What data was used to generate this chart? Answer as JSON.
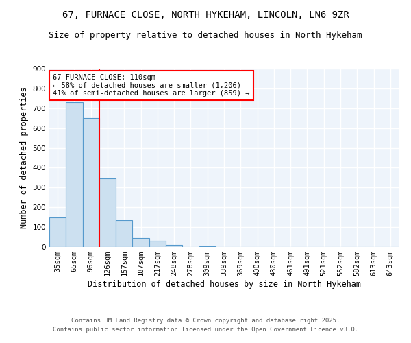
{
  "title_line1": "67, FURNACE CLOSE, NORTH HYKEHAM, LINCOLN, LN6 9ZR",
  "title_line2": "Size of property relative to detached houses in North Hykeham",
  "xlabel": "Distribution of detached houses by size in North Hykeham",
  "ylabel": "Number of detached properties",
  "categories": [
    "35sqm",
    "65sqm",
    "96sqm",
    "126sqm",
    "157sqm",
    "187sqm",
    "217sqm",
    "248sqm",
    "278sqm",
    "309sqm",
    "339sqm",
    "369sqm",
    "400sqm",
    "430sqm",
    "461sqm",
    "491sqm",
    "521sqm",
    "552sqm",
    "582sqm",
    "613sqm",
    "643sqm"
  ],
  "values": [
    150,
    730,
    650,
    345,
    135,
    45,
    30,
    10,
    0,
    5,
    0,
    0,
    0,
    0,
    0,
    0,
    0,
    0,
    0,
    0,
    0
  ],
  "bar_color": "#cce0f0",
  "bar_edge_color": "#5599cc",
  "red_line_x": 2.5,
  "annotation_text": "67 FURNACE CLOSE: 110sqm\n← 58% of detached houses are smaller (1,206)\n41% of semi-detached houses are larger (859) →",
  "annotation_box_color": "white",
  "annotation_box_edge_color": "red",
  "red_line_color": "red",
  "ylim": [
    0,
    900
  ],
  "yticks": [
    0,
    100,
    200,
    300,
    400,
    500,
    600,
    700,
    800,
    900
  ],
  "background_color": "#eef4fb",
  "grid_color": "white",
  "footer_line1": "Contains HM Land Registry data © Crown copyright and database right 2025.",
  "footer_line2": "Contains public sector information licensed under the Open Government Licence v3.0.",
  "title_fontsize": 10,
  "subtitle_fontsize": 9,
  "axis_label_fontsize": 8.5,
  "tick_fontsize": 7.5,
  "annotation_fontsize": 7.5,
  "footer_fontsize": 6.5
}
